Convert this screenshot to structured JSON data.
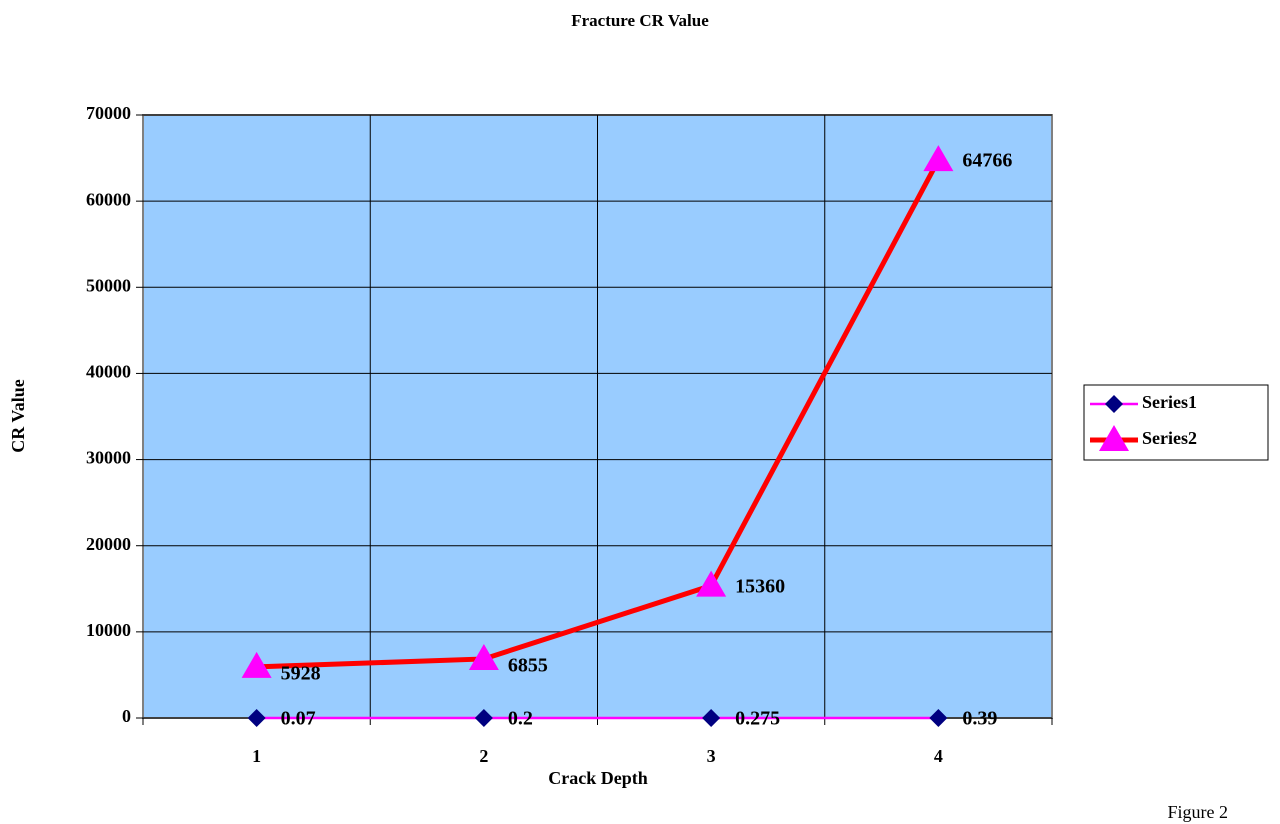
{
  "chart_data": {
    "type": "line",
    "title": "Fracture CR Value",
    "x_label": "Crack Depth",
    "y_label": "CR Value",
    "categories": [
      "1",
      "2",
      "3",
      "4"
    ],
    "series": [
      {
        "name": "Series1",
        "color": "#ff00ff",
        "marker_color": "#000080",
        "marker": "diamond",
        "values": [
          0.07,
          0.2,
          0.275,
          0.39
        ]
      },
      {
        "name": "Series2",
        "color": "#ff0000",
        "marker_color": "#ff00ff",
        "marker": "triangle",
        "values": [
          5928,
          6855,
          15360,
          64766
        ]
      }
    ],
    "ylim": [
      0,
      70000
    ],
    "yticks": [
      0,
      10000,
      20000,
      30000,
      40000,
      50000,
      60000,
      70000
    ],
    "grid": true,
    "legend": "right",
    "plot_background": "#99ccff",
    "caption": "Figure 2"
  }
}
